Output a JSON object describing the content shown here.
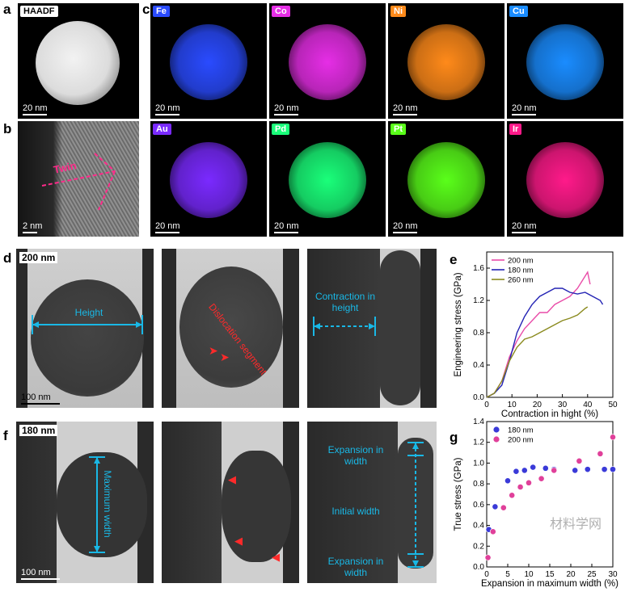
{
  "panels": {
    "a": {
      "letter": "a",
      "label": "HAADF",
      "scale": "20  nm"
    },
    "b": {
      "letter": "b",
      "annotation": "Twin",
      "scale": "2  nm"
    },
    "c": {
      "letter": "c",
      "elements": [
        {
          "name": "Fe",
          "color": "#2a4bff",
          "scale": "20  nm"
        },
        {
          "name": "Co",
          "color": "#e62ee6",
          "scale": "20  nm"
        },
        {
          "name": "Ni",
          "color": "#ff8a1a",
          "scale": "20  nm"
        },
        {
          "name": "Cu",
          "color": "#1a8cff",
          "scale": "20  nm"
        },
        {
          "name": "Au",
          "color": "#7a2aff",
          "scale": "20  nm"
        },
        {
          "name": "Pd",
          "color": "#1aff7a",
          "scale": "20  nm"
        },
        {
          "name": "Pt",
          "color": "#5aff1a",
          "scale": "20  nm"
        },
        {
          "name": "Ir",
          "color": "#ff1a8a",
          "scale": "20  nm"
        }
      ]
    },
    "d": {
      "letter": "d",
      "size_label": "200 nm",
      "height_label": "Height",
      "dislocation_label": "Dislocation segment",
      "contraction_label": "Contraction in height",
      "scale": "100  nm"
    },
    "f": {
      "letter": "f",
      "size_label": "180 nm",
      "max_width_label": "Maximum width",
      "expansion_top": "Expansion in width",
      "initial_width": "Initial width",
      "expansion_bottom": "Expansion in width",
      "scale": "100  nm"
    }
  },
  "chart_e": {
    "letter": "e",
    "chart_data": {
      "type": "line",
      "xlabel": "Contraction in hight (%)",
      "ylabel": "Engineering stress (GPa)",
      "xlim": [
        0,
        50
      ],
      "ylim": [
        0,
        1.8
      ],
      "xticks": [
        "0",
        "10",
        "20",
        "30",
        "40",
        "50"
      ],
      "yticks": [
        "0.0",
        "0.4",
        "0.8",
        "1.2",
        "1.6"
      ],
      "legend_position": "top-left",
      "series": [
        {
          "name": "200 nm",
          "color": "#e94ca8",
          "x": [
            0,
            3,
            6,
            9,
            12,
            15,
            18,
            21,
            24,
            27,
            30,
            33,
            36,
            38,
            40,
            41
          ],
          "y": [
            0,
            0.05,
            0.2,
            0.5,
            0.7,
            0.85,
            0.95,
            1.05,
            1.05,
            1.15,
            1.2,
            1.25,
            1.35,
            1.45,
            1.55,
            1.4
          ]
        },
        {
          "name": "180 nm",
          "color": "#2323b4",
          "x": [
            0,
            3,
            6,
            9,
            12,
            15,
            18,
            21,
            24,
            27,
            30,
            33,
            36,
            39,
            42,
            45,
            46
          ],
          "y": [
            0,
            0.05,
            0.15,
            0.45,
            0.8,
            1.0,
            1.15,
            1.25,
            1.3,
            1.35,
            1.35,
            1.3,
            1.28,
            1.3,
            1.25,
            1.2,
            1.15
          ]
        },
        {
          "name": "260 nm",
          "color": "#8a8a1e",
          "x": [
            0,
            3,
            6,
            9,
            12,
            15,
            18,
            21,
            24,
            27,
            30,
            33,
            36,
            39,
            40
          ],
          "y": [
            0,
            0.05,
            0.2,
            0.45,
            0.62,
            0.72,
            0.75,
            0.8,
            0.85,
            0.9,
            0.95,
            0.98,
            1.02,
            1.1,
            1.12
          ]
        }
      ]
    }
  },
  "chart_g": {
    "letter": "g",
    "chart_data": {
      "type": "scatter",
      "xlabel": "Expansion in maximum width (%)",
      "ylabel": "True stress (GPa)",
      "xlim": [
        0,
        30
      ],
      "ylim": [
        0,
        1.4
      ],
      "xticks": [
        "0",
        "5",
        "10",
        "15",
        "20",
        "25",
        "30"
      ],
      "yticks": [
        "0.0",
        "0.2",
        "0.4",
        "0.6",
        "0.8",
        "1.0",
        "1.2",
        "1.4"
      ],
      "legend_position": "top-left",
      "series": [
        {
          "name": "180 nm",
          "color": "#3a3ad8",
          "x": [
            0.5,
            2,
            5,
            7,
            9,
            11,
            14,
            16,
            21,
            24,
            28,
            30
          ],
          "y": [
            0.36,
            0.58,
            0.83,
            0.92,
            0.93,
            0.96,
            0.95,
            0.94,
            0.93,
            0.94,
            0.94,
            0.94
          ]
        },
        {
          "name": "200 nm",
          "color": "#e0409a",
          "x": [
            0.3,
            1.5,
            4,
            6,
            8,
            10,
            13,
            16,
            22,
            27,
            30
          ],
          "y": [
            0.09,
            0.34,
            0.57,
            0.69,
            0.77,
            0.81,
            0.85,
            0.93,
            1.02,
            1.09,
            1.25
          ]
        }
      ]
    }
  },
  "watermark": "材料学网"
}
